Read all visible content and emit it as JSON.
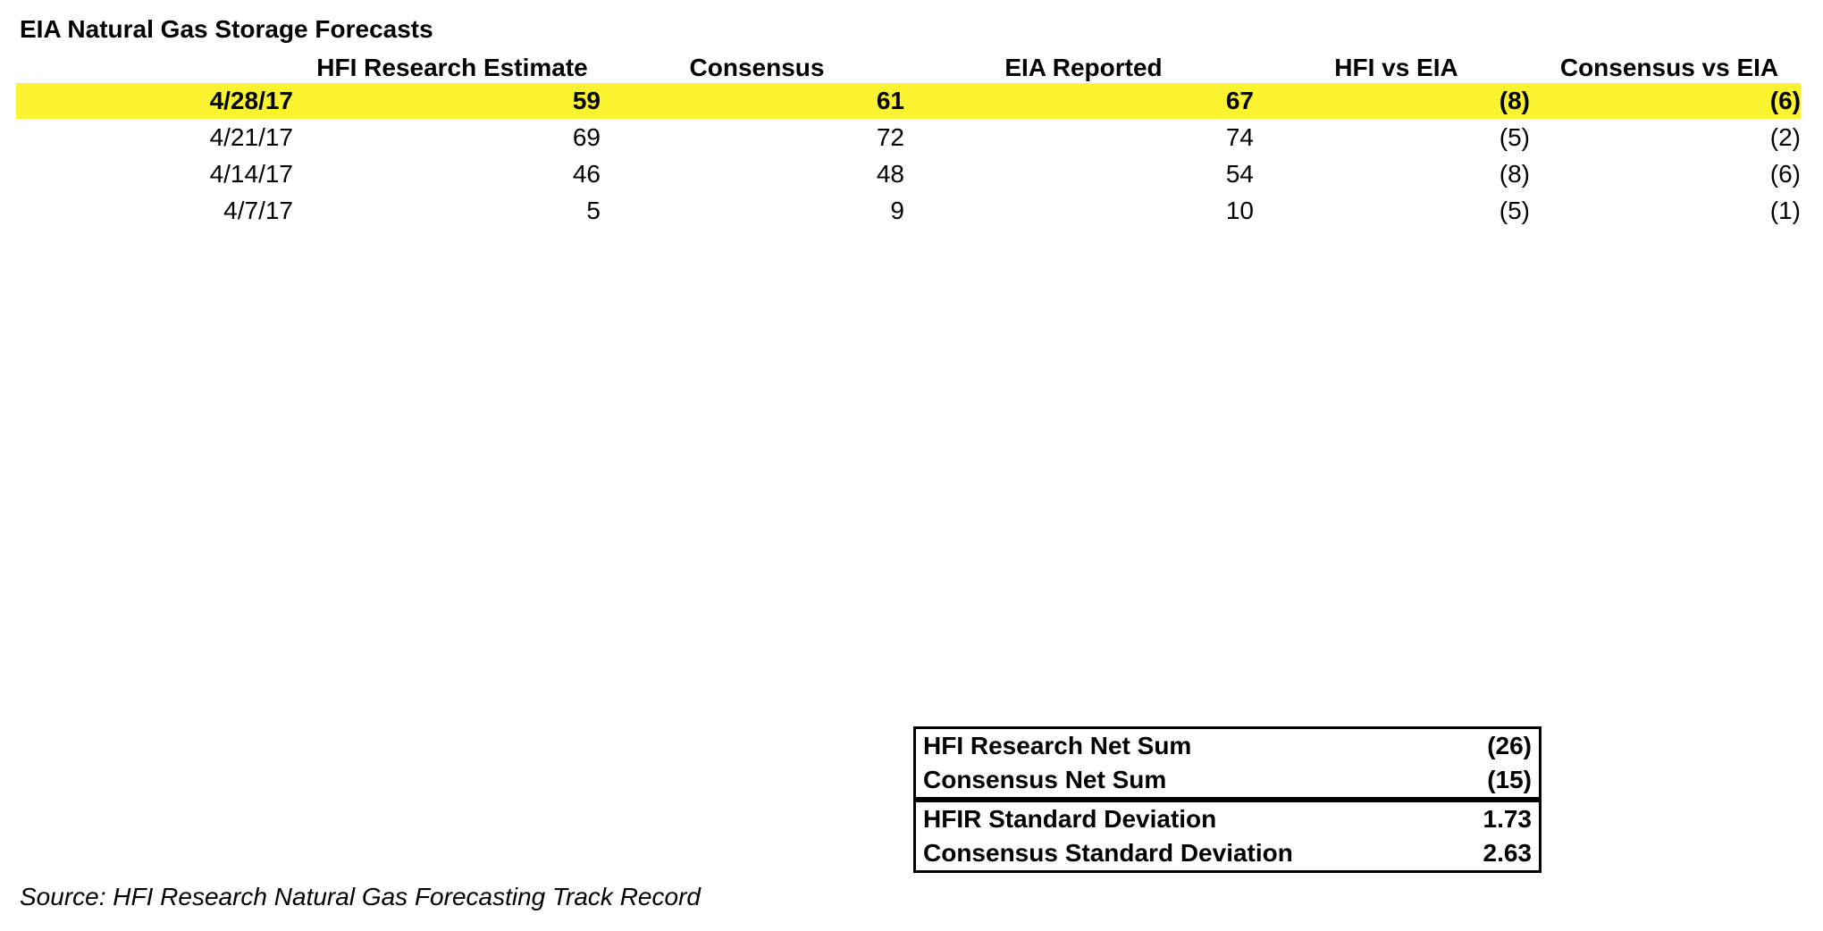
{
  "title": "EIA Natural Gas Storage Forecasts",
  "table": {
    "columns": {
      "date": "",
      "hfi": "HFI Research Estimate",
      "consensus": "Consensus",
      "eia": "EIA Reported",
      "hfi_vs_eia": "HFI vs EIA",
      "consensus_vs_eia": "Consensus vs EIA"
    },
    "rows": [
      {
        "date": "4/28/17",
        "hfi": "59",
        "consensus": "61",
        "eia": "67",
        "hfi_vs_eia": "(8)",
        "consensus_vs_eia": "(6)",
        "highlighted": true
      },
      {
        "date": "4/21/17",
        "hfi": "69",
        "consensus": "72",
        "eia": "74",
        "hfi_vs_eia": "(5)",
        "consensus_vs_eia": "(2)",
        "highlighted": false
      },
      {
        "date": "4/14/17",
        "hfi": "46",
        "consensus": "48",
        "eia": "54",
        "hfi_vs_eia": "(8)",
        "consensus_vs_eia": "(6)",
        "highlighted": false
      },
      {
        "date": "4/7/17",
        "hfi": "5",
        "consensus": "9",
        "eia": "10",
        "hfi_vs_eia": "(5)",
        "consensus_vs_eia": "(1)",
        "highlighted": false
      }
    ]
  },
  "summary": {
    "net_sum": [
      {
        "label": "HFI Research Net Sum",
        "value": "(26)"
      },
      {
        "label": "Consensus Net Sum",
        "value": "(15)"
      }
    ],
    "std_dev": [
      {
        "label": "HFIR Standard Deviation",
        "value": "1.73"
      },
      {
        "label": "Consensus Standard Deviation",
        "value": "2.63"
      }
    ]
  },
  "source": "Source: HFI Research Natural Gas Forecasting Track Record",
  "colors": {
    "highlight": "#FBF230",
    "text": "#000000",
    "border": "#000000",
    "background": "#FFFFFF"
  }
}
